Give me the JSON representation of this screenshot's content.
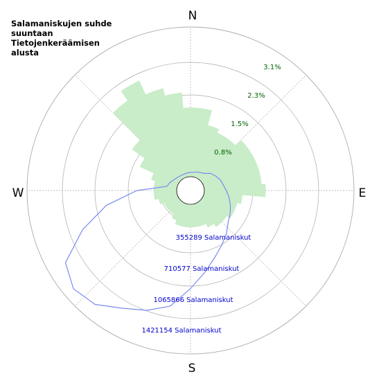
{
  "title": "Salamaniskujen suhde suuntaan Tietojenkeräämisen alusta",
  "compass": {
    "n": "N",
    "e": "E",
    "s": "S",
    "w": "W"
  },
  "colors": {
    "fill": "#c9ecc9",
    "line": "#7a8af0",
    "pct_label": "#006400",
    "count_label": "#0000cc",
    "grid": "#aaaaaa"
  },
  "chart_data": {
    "type": "area",
    "projection": "polar",
    "title": "Salamaniskujen suhde suuntaan Tietojenkeräämisen alusta",
    "direction_labels": [
      "N",
      "E",
      "S",
      "W"
    ],
    "percent_axis": {
      "ticks": [
        "0.8%",
        "1.5%",
        "2.3%",
        "3.1%"
      ],
      "max_percent": 3.9
    },
    "count_axis": {
      "ticks": [
        "355289 Salamaniskut",
        "710577 Salamaniskut",
        "1065866 Salamaniskut",
        "1421154 Salamaniskut"
      ],
      "max_count": 1776443
    },
    "grid": true,
    "series": [
      {
        "kind": "percent",
        "bearing_deg": [
          0,
          10,
          20,
          30,
          40,
          50,
          60,
          70,
          80,
          90,
          100,
          110,
          120,
          130,
          140,
          150,
          160,
          170,
          180,
          190,
          200,
          210,
          220,
          230,
          240,
          250,
          260,
          270,
          280,
          290,
          300,
          310,
          320,
          330,
          340,
          350
        ],
        "values": [
          1.8,
          1.8,
          1.4,
          1.3,
          1.3,
          1.5,
          1.5,
          1.5,
          1.5,
          1.6,
          1.0,
          0.9,
          0.9,
          0.8,
          0.8,
          0.7,
          0.6,
          0.6,
          0.6,
          0.6,
          0.6,
          0.5,
          0.4,
          0.4,
          0.4,
          0.5,
          0.6,
          0.6,
          0.6,
          0.7,
          1.1,
          1.5,
          2.5,
          2.8,
          2.4,
          2.2
        ]
      },
      {
        "kind": "count",
        "bearing_deg": [
          0,
          10,
          20,
          30,
          40,
          50,
          60,
          70,
          80,
          90,
          100,
          110,
          120,
          130,
          140,
          150,
          160,
          170,
          180,
          190,
          200,
          210,
          220,
          230,
          240,
          250,
          260,
          270,
          280,
          290,
          300,
          310,
          320,
          330,
          340,
          350
        ],
        "values": [
          50000,
          55000,
          70000,
          80000,
          100000,
          150000,
          180000,
          210000,
          230000,
          260000,
          300000,
          340000,
          380000,
          420000,
          500000,
          580000,
          680000,
          820000,
          1000000,
          1230000,
          1350000,
          1450000,
          1600000,
          1650000,
          1550000,
          1200000,
          850000,
          470000,
          120000,
          100000,
          75000,
          60000,
          50000,
          45000,
          45000,
          48000
        ]
      }
    ]
  }
}
